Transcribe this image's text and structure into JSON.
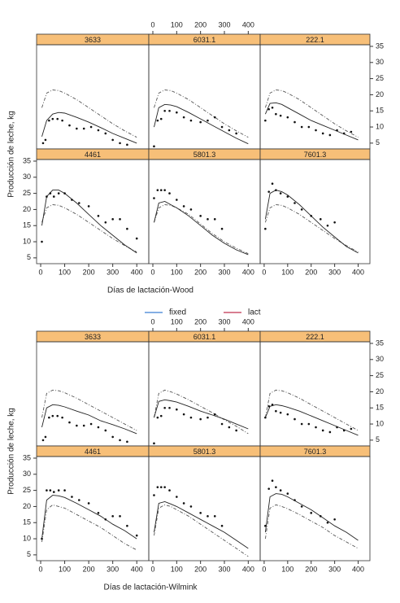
{
  "chart_data": [
    {
      "type": "line",
      "xlabel": "Días de lactación-Wood",
      "ylabel": "Producción de leche, kg",
      "xlim": [
        -17,
        450
      ],
      "ylim": [
        3.2,
        35.5
      ],
      "xticks": [
        0,
        100,
        200,
        300,
        400
      ],
      "yticks": [
        5,
        10,
        15,
        20,
        25,
        30,
        35
      ],
      "curve_x": [
        5,
        25,
        50,
        75,
        100,
        150,
        200,
        250,
        300,
        350,
        400
      ],
      "panels": [
        {
          "title": "3633",
          "points_x": [
            10,
            20,
            35,
            50,
            70,
            90,
            120,
            150,
            180,
            210,
            240,
            270,
            300,
            330,
            360
          ],
          "points_y": [
            5,
            6,
            12,
            12.5,
            12.5,
            12,
            10.5,
            9.5,
            9.5,
            10,
            9,
            8,
            6,
            5,
            4.5
          ],
          "solid": [
            7,
            12,
            14,
            14.5,
            14.3,
            13,
            11.5,
            9.8,
            8,
            6.5,
            5
          ],
          "dashed": [
            16,
            20.5,
            21.5,
            21.3,
            20.5,
            18.5,
            16,
            13.5,
            11,
            8.8,
            6.8
          ]
        },
        {
          "title": "6031.1",
          "points_x": [
            5,
            20,
            35,
            50,
            70,
            100,
            130,
            160,
            200,
            230,
            260,
            290,
            320,
            350
          ],
          "points_y": [
            4,
            12,
            12.5,
            15,
            15,
            14.5,
            13,
            12,
            11.5,
            12,
            13,
            10,
            9,
            8
          ],
          "solid": [
            10,
            16,
            17,
            16.8,
            16.3,
            14.5,
            12.5,
            10.5,
            8.5,
            6.5,
            4.8
          ],
          "dashed": [
            16,
            20.5,
            21.5,
            21.3,
            20.5,
            18.5,
            16,
            13.5,
            11,
            8.8,
            6.8
          ]
        },
        {
          "title": "222.1",
          "points_x": [
            5,
            20,
            35,
            50,
            70,
            100,
            130,
            160,
            190,
            220,
            250,
            280,
            310,
            340,
            370
          ],
          "points_y": [
            12,
            15.5,
            16,
            14,
            13.5,
            13,
            11.5,
            10,
            10,
            9,
            8,
            7.5,
            9,
            8,
            8.5
          ],
          "solid": [
            14,
            17.3,
            17.5,
            17,
            16,
            14,
            12,
            10.5,
            9,
            7.5,
            6
          ],
          "dashed": [
            16,
            20.5,
            21.5,
            21.3,
            20.5,
            18.5,
            16,
            13.5,
            11,
            8.8,
            6.8
          ]
        },
        {
          "title": "4461",
          "points_x": [
            5,
            25,
            40,
            55,
            75,
            100,
            130,
            160,
            200,
            240,
            270,
            300,
            330,
            360,
            400
          ],
          "points_y": [
            10,
            24,
            25,
            24,
            25,
            25,
            23,
            22,
            21,
            18,
            16,
            17,
            17,
            14,
            11
          ],
          "solid": [
            15,
            24,
            26,
            26,
            25,
            22,
            18.5,
            15,
            12,
            9,
            6.5
          ],
          "dashed": [
            16,
            20.5,
            21.5,
            21.3,
            20.5,
            18.5,
            16,
            13.5,
            11,
            8.8,
            6.8
          ]
        },
        {
          "title": "5801.3",
          "points_x": [
            5,
            20,
            35,
            50,
            70,
            100,
            130,
            160,
            200,
            230,
            260,
            290
          ],
          "points_y": [
            23.5,
            26,
            26,
            26,
            25,
            23,
            21,
            20,
            18,
            17,
            17,
            14
          ],
          "solid": [
            16,
            22,
            22.5,
            21.5,
            20.5,
            18,
            15,
            12,
            9.5,
            7.5,
            6
          ],
          "dashed": [
            16,
            20.5,
            21.5,
            21.3,
            20.5,
            18.5,
            15.5,
            12.5,
            10,
            8,
            6.3
          ]
        },
        {
          "title": "7601.3",
          "points_x": [
            5,
            20,
            35,
            50,
            70,
            100,
            130,
            160,
            200,
            240,
            270,
            300
          ],
          "points_y": [
            14,
            25.5,
            28,
            26,
            25,
            24,
            22,
            20,
            18,
            17,
            15,
            16
          ],
          "solid": [
            17,
            25,
            26,
            25.5,
            24.5,
            21.5,
            18,
            14.5,
            11.5,
            8.5,
            6.5
          ],
          "dashed": [
            16,
            20.5,
            21.5,
            21.3,
            20.5,
            18.5,
            16,
            13.5,
            11,
            8.8,
            6.8
          ]
        }
      ]
    },
    {
      "type": "line",
      "xlabel": "Días de lactación-Wilmink",
      "ylabel": "Producción de leche, kg",
      "xlim": [
        -17,
        450
      ],
      "ylim": [
        3.2,
        35.5
      ],
      "xticks": [
        0,
        100,
        200,
        300,
        400
      ],
      "yticks": [
        5,
        10,
        15,
        20,
        25,
        30,
        35
      ],
      "legend": [
        {
          "name": "fixed",
          "color": "#3b7fd4"
        },
        {
          "name": "lact",
          "color": "#c0304f"
        }
      ],
      "curve_x": [
        5,
        25,
        50,
        75,
        100,
        150,
        200,
        250,
        300,
        350,
        400
      ],
      "panels": [
        {
          "title": "3633",
          "points_x": [
            10,
            20,
            35,
            50,
            70,
            90,
            120,
            150,
            180,
            210,
            240,
            270,
            300,
            330,
            360
          ],
          "points_y": [
            5,
            6,
            12,
            12.5,
            12.5,
            12,
            10.5,
            9.5,
            9.5,
            10,
            9,
            8,
            6,
            5,
            4.5
          ],
          "solid": [
            9,
            15,
            16,
            15.8,
            15.3,
            14,
            12.8,
            11,
            9.8,
            8.5,
            7
          ],
          "dashed": [
            12,
            19.5,
            20.5,
            20.3,
            19.7,
            18,
            16,
            14,
            12,
            10,
            8
          ]
        },
        {
          "title": "6031.1",
          "points_x": [
            5,
            20,
            35,
            50,
            70,
            100,
            130,
            160,
            200,
            230,
            260,
            290,
            320,
            350
          ],
          "points_y": [
            4,
            12,
            12.5,
            15,
            15,
            14.5,
            13,
            12,
            11.5,
            12,
            13,
            10,
            9,
            8
          ],
          "solid": [
            12,
            17,
            17.5,
            17.2,
            16.8,
            15.5,
            14,
            12.8,
            11.5,
            10,
            8.5
          ],
          "dashed": [
            12,
            19.5,
            20.5,
            20,
            19.3,
            17.5,
            15.5,
            13.5,
            11.3,
            9.3,
            7
          ]
        },
        {
          "title": "222.1",
          "points_x": [
            5,
            20,
            35,
            50,
            70,
            100,
            130,
            160,
            190,
            220,
            250,
            280,
            310,
            340,
            370
          ],
          "points_y": [
            12,
            15.5,
            16,
            14,
            13.5,
            13,
            11.5,
            10,
            10,
            9,
            8,
            7.5,
            9,
            8,
            8.5
          ],
          "solid": [
            12,
            15.5,
            16,
            15.7,
            15.2,
            14,
            12.5,
            11,
            9.5,
            8,
            6.5
          ],
          "dashed": [
            12,
            19.5,
            20.5,
            20.3,
            19.7,
            18,
            16,
            14,
            12,
            10,
            8
          ]
        },
        {
          "title": "4461",
          "points_x": [
            5,
            25,
            40,
            55,
            75,
            100,
            130,
            160,
            200,
            240,
            270,
            300,
            330,
            360,
            400
          ],
          "points_y": [
            10,
            25,
            25,
            24.5,
            25,
            25,
            23,
            22,
            21,
            18,
            16,
            17,
            17,
            14,
            11
          ],
          "solid": [
            10,
            22,
            23.5,
            23.3,
            22.8,
            21,
            19,
            17,
            14.5,
            12.5,
            10
          ],
          "dashed": [
            9,
            19,
            20.5,
            20,
            19.5,
            17.5,
            15.5,
            13.5,
            11,
            8.5,
            6.5
          ]
        },
        {
          "title": "5801.3",
          "points_x": [
            5,
            20,
            35,
            50,
            70,
            100,
            130,
            160,
            200,
            230,
            260,
            290
          ],
          "points_y": [
            23.5,
            26,
            26,
            26,
            25,
            23,
            21,
            20,
            18,
            17,
            17,
            14
          ],
          "solid": [
            12,
            21,
            21.5,
            20.8,
            20,
            18,
            16,
            14,
            12,
            9.5,
            7
          ],
          "dashed": [
            11,
            19.5,
            20.5,
            20,
            19,
            17,
            14.5,
            12,
            9.5,
            7,
            4.5
          ]
        },
        {
          "title": "7601.3",
          "points_x": [
            5,
            20,
            35,
            50,
            70,
            100,
            130,
            160,
            200,
            240,
            270,
            300
          ],
          "points_y": [
            14,
            25.5,
            28,
            26,
            25,
            24,
            22,
            20,
            18,
            17,
            15,
            16
          ],
          "solid": [
            12,
            23,
            24,
            23.8,
            23,
            21,
            19,
            16.5,
            14,
            12,
            9.5
          ],
          "dashed": [
            10,
            19.5,
            20.5,
            20,
            19.3,
            17.5,
            15.5,
            13.5,
            11,
            9,
            7
          ]
        }
      ]
    }
  ]
}
